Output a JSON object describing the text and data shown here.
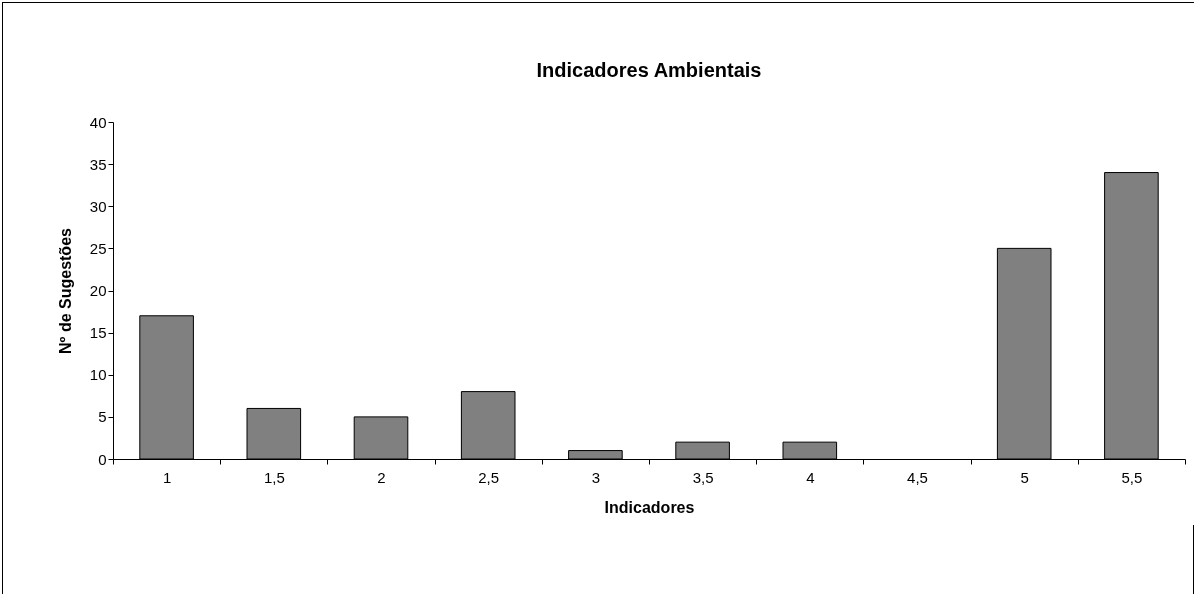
{
  "chart_data": {
    "type": "bar",
    "title": "Indicadores Ambientais",
    "xlabel": "Indicadores",
    "ylabel": "Nº de Sugestões",
    "categories": [
      "1",
      "1,5",
      "2",
      "2,5",
      "3",
      "3,5",
      "4",
      "4,5",
      "5",
      "5,5"
    ],
    "values": [
      17,
      6,
      5,
      8,
      1,
      2,
      2,
      0,
      25,
      34
    ],
    "color": "#808080",
    "ylim": [
      0,
      40
    ],
    "yticks": [
      0,
      5,
      10,
      15,
      20,
      25,
      30,
      35,
      40
    ],
    "grid": false
  }
}
